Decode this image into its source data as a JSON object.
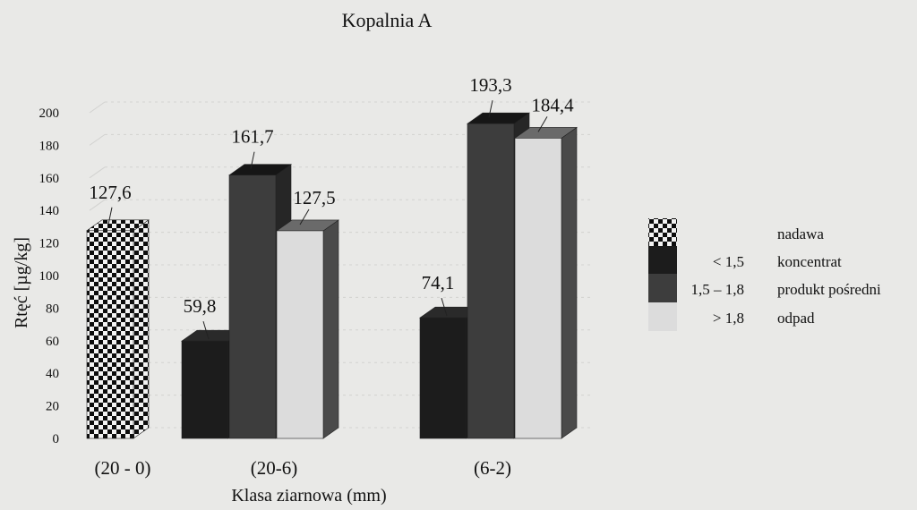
{
  "chart_data": {
    "type": "bar",
    "title": "Kopalnia A",
    "xlabel": "Klasa ziarnowa (mm)",
    "ylabel": "Rtęć [µg/kg]",
    "ylim": [
      0,
      200
    ],
    "yticks": [
      0,
      20,
      40,
      60,
      80,
      100,
      120,
      140,
      160,
      180,
      200
    ],
    "categories": [
      "(20 - 0)",
      "(20-6)",
      "(6-2)"
    ],
    "series": [
      {
        "name": "nadawa",
        "range": "",
        "values": [
          127.6,
          null,
          null
        ],
        "labels": [
          "127,6",
          null,
          null
        ]
      },
      {
        "name": "koncentrat",
        "range": "< 1,5",
        "values": [
          null,
          59.8,
          74.1
        ],
        "labels": [
          null,
          "59,8",
          "74,1"
        ]
      },
      {
        "name": "produkt pośredni",
        "range": "1,5 – 1,8",
        "values": [
          null,
          161.7,
          193.3
        ],
        "labels": [
          null,
          "161,7",
          "193,3"
        ]
      },
      {
        "name": "odpad",
        "range": "> 1,8",
        "values": [
          null,
          127.5,
          184.4
        ],
        "labels": [
          null,
          "127,5",
          "184,4"
        ]
      }
    ],
    "legend_position": "right",
    "colors": {
      "nadawa_dark": "#0d0d0d",
      "nadawa_light": "#f2f2f2",
      "koncentrat": "#1c1c1c",
      "produkt_posredni": "#3d3d3d",
      "odpad": "#dcdcdc",
      "background": "#e9e9e7"
    }
  }
}
